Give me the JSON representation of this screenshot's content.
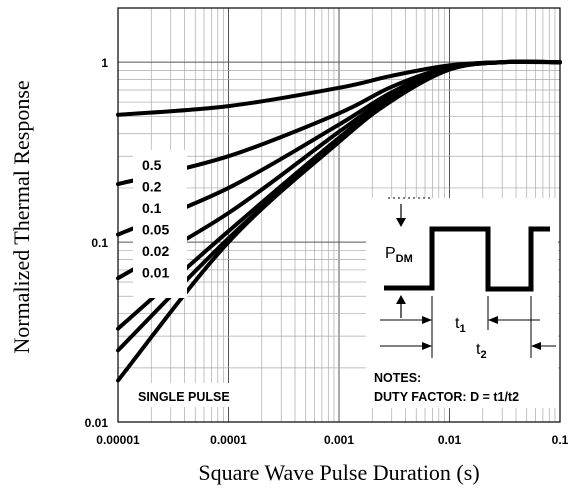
{
  "chart_data": {
    "type": "line",
    "title": "",
    "xlabel": "Square Wave Pulse Duration (s)",
    "ylabel": "Normalized Thermal Response",
    "xscale": "log",
    "yscale": "log",
    "xlim": [
      1e-05,
      0.1
    ],
    "ylim": [
      0.01,
      2
    ],
    "grid": true,
    "x_tick_labels": [
      "0.00001",
      "0.0001",
      "0.001",
      "0.01",
      "0.1"
    ],
    "y_tick_labels": [
      "0.01",
      "0.1",
      "1"
    ],
    "series": [
      {
        "name": "0.5",
        "x": [
          1e-05,
          0.0001,
          0.001,
          0.003,
          0.01,
          0.03,
          0.1
        ],
        "y": [
          0.51,
          0.57,
          0.72,
          0.84,
          0.96,
          1.0,
          1.0
        ]
      },
      {
        "name": "0.2",
        "x": [
          1e-05,
          0.0001,
          0.001,
          0.003,
          0.01,
          0.03,
          0.1
        ],
        "y": [
          0.21,
          0.3,
          0.52,
          0.73,
          0.94,
          1.0,
          1.0
        ]
      },
      {
        "name": "0.1",
        "x": [
          1e-05,
          0.0001,
          0.001,
          0.003,
          0.01,
          0.03,
          0.1
        ],
        "y": [
          0.11,
          0.2,
          0.45,
          0.68,
          0.93,
          1.0,
          1.0
        ]
      },
      {
        "name": "0.05",
        "x": [
          1e-05,
          0.0001,
          0.001,
          0.003,
          0.01,
          0.03,
          0.1
        ],
        "y": [
          0.063,
          0.145,
          0.41,
          0.65,
          0.92,
          1.0,
          1.0
        ]
      },
      {
        "name": "0.02",
        "x": [
          1e-05,
          0.0001,
          0.001,
          0.003,
          0.01,
          0.03,
          0.1
        ],
        "y": [
          0.033,
          0.115,
          0.38,
          0.63,
          0.92,
          1.0,
          1.0
        ]
      },
      {
        "name": "0.01",
        "x": [
          1e-05,
          0.0001,
          0.001,
          0.003,
          0.01,
          0.03,
          0.1
        ],
        "y": [
          0.025,
          0.105,
          0.37,
          0.62,
          0.91,
          1.0,
          1.0
        ]
      },
      {
        "name": "SINGLE PULSE",
        "x": [
          1e-05,
          0.0001,
          0.001,
          0.003,
          0.01,
          0.03,
          0.1
        ],
        "y": [
          0.017,
          0.1,
          0.36,
          0.61,
          0.91,
          1.0,
          1.0
        ]
      }
    ],
    "legend": {
      "placement": "left",
      "labels": [
        "0.5",
        "0.2",
        "0.1",
        "0.05",
        "0.02",
        "0.01"
      ]
    },
    "annotations": {
      "single_pulse": "SINGLE PULSE",
      "notes_title": "NOTES:",
      "duty_factor": "DUTY FACTOR: D = t1/t2",
      "pdm_main": "P",
      "pdm_sub": "DM",
      "t1_main": "t",
      "t1_sub": "1",
      "t2_main": "t",
      "t2_sub": "2"
    }
  }
}
